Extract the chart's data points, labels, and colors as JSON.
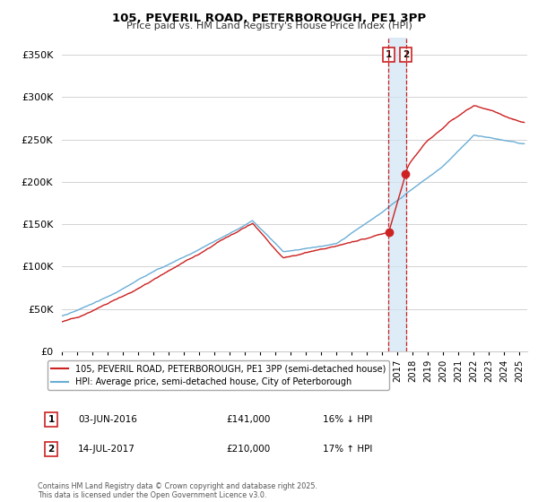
{
  "title_line1": "105, PEVERIL ROAD, PETERBOROUGH, PE1 3PP",
  "title_line2": "Price paid vs. HM Land Registry's House Price Index (HPI)",
  "yticks": [
    0,
    50000,
    100000,
    150000,
    200000,
    250000,
    300000,
    350000
  ],
  "ytick_labels": [
    "£0",
    "£50K",
    "£100K",
    "£150K",
    "£200K",
    "£250K",
    "£300K",
    "£350K"
  ],
  "xlim_start": 1995.0,
  "xlim_end": 2025.5,
  "ylim": [
    0,
    370000
  ],
  "hpi_color": "#6baed6",
  "price_color": "#cc2222",
  "vline_color": "#cc2222",
  "band_color": "#d0e4f5",
  "legend_label_price": "105, PEVERIL ROAD, PETERBOROUGH, PE1 3PP (semi-detached house)",
  "legend_label_hpi": "HPI: Average price, semi-detached house, City of Peterborough",
  "transaction1_date": "03-JUN-2016",
  "transaction1_price": "£141,000",
  "transaction1_hpi": "16% ↓ HPI",
  "transaction1_year": 2016.42,
  "transaction2_date": "14-JUL-2017",
  "transaction2_price": "£210,000",
  "transaction2_hpi": "17% ↑ HPI",
  "transaction2_year": 2017.54,
  "footnote": "Contains HM Land Registry data © Crown copyright and database right 2025.\nThis data is licensed under the Open Government Licence v3.0.",
  "background_color": "#ffffff",
  "grid_color": "#cccccc"
}
